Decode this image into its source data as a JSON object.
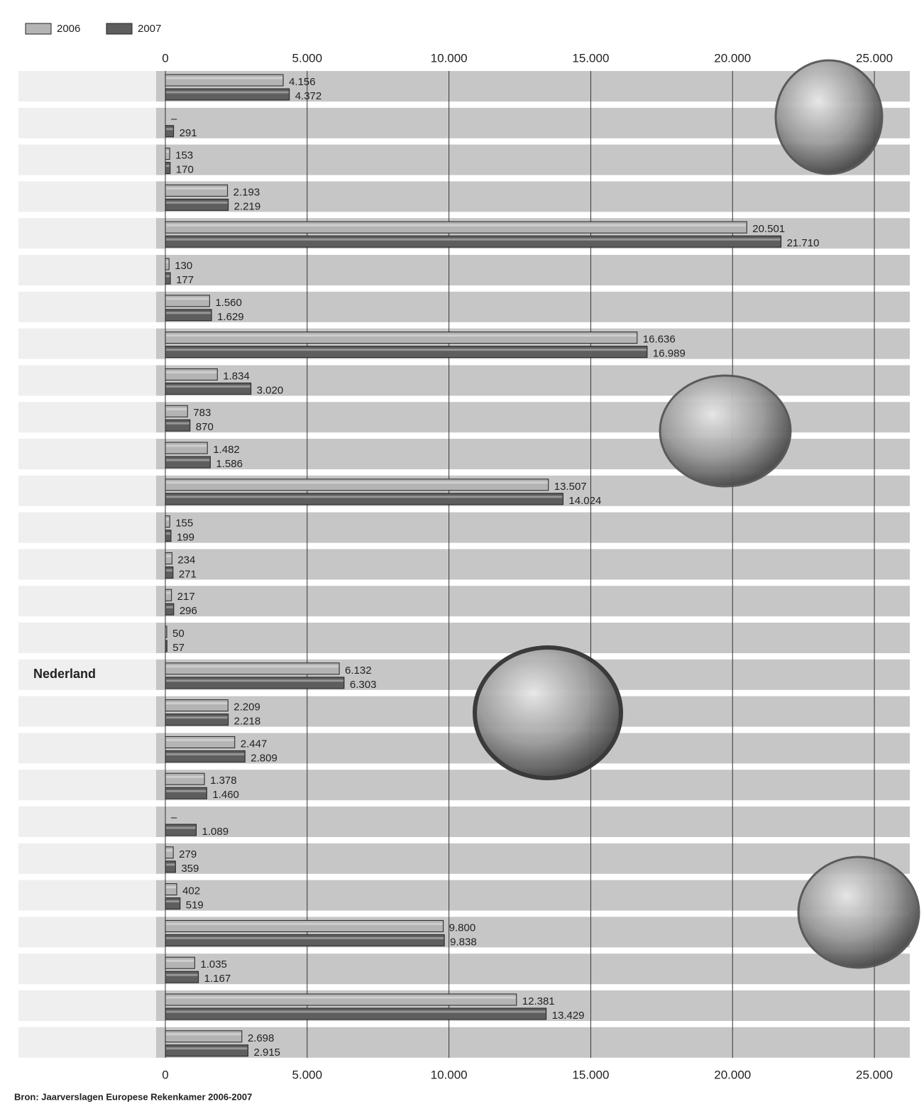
{
  "chart_data": {
    "type": "barh",
    "categories": [
      null,
      null,
      null,
      null,
      null,
      null,
      null,
      null,
      null,
      null,
      null,
      null,
      null,
      null,
      null,
      null,
      "Nederland",
      null,
      null,
      null,
      null,
      null,
      null,
      null,
      null,
      null,
      null
    ],
    "series": [
      {
        "name": "2006",
        "color": "#b4b4b4",
        "values": [
          4156,
          null,
          153,
          2193,
          20501,
          130,
          1560,
          16636,
          1834,
          783,
          1482,
          13507,
          155,
          234,
          217,
          50,
          6132,
          2209,
          2447,
          1378,
          null,
          279,
          402,
          9800,
          1035,
          12381,
          2698
        ],
        "value_labels": [
          "4.156",
          "–",
          "153",
          "2.193",
          "20.501",
          "130",
          "1.560",
          "16.636",
          "1.834",
          "783",
          "1.482",
          "13.507",
          "155",
          "234",
          "217",
          "50",
          "6.132",
          "2.209",
          "2.447",
          "1.378",
          "–",
          "279",
          "402",
          "9.800",
          "1.035",
          "12.381",
          "2.698"
        ]
      },
      {
        "name": "2007",
        "color": "#5e5e5e",
        "values": [
          4372,
          291,
          170,
          2219,
          21710,
          177,
          1629,
          16989,
          3020,
          870,
          1586,
          14024,
          199,
          271,
          296,
          57,
          6303,
          2218,
          2809,
          1460,
          1089,
          359,
          519,
          9838,
          1167,
          13429,
          2915
        ],
        "value_labels": [
          "4.372",
          "291",
          "170",
          "2.219",
          "21.710",
          "177",
          "1.629",
          "16.989",
          "3.020",
          "870",
          "1.586",
          "14.024",
          "199",
          "271",
          "296",
          "57",
          "6.303",
          "2.218",
          "2.809",
          "1.460",
          "1.089",
          "359",
          "519",
          "9.838",
          "1.167",
          "13.429",
          "2.915"
        ]
      }
    ],
    "xlim": [
      0,
      26250
    ],
    "xticks": [
      0,
      {
        "value": 5000,
        "label": "5.000"
      },
      {
        "value": 10000,
        "label": "10.000"
      },
      {
        "value": 15000,
        "label": "15.000"
      },
      {
        "value": 20000,
        "label": "20.000"
      },
      {
        "value": 25000,
        "label": "25.000"
      }
    ],
    "grid": true,
    "legend": "top-left",
    "source": "Bron: Jaarverslagen Europese Rekenkamer 2006-2007"
  }
}
